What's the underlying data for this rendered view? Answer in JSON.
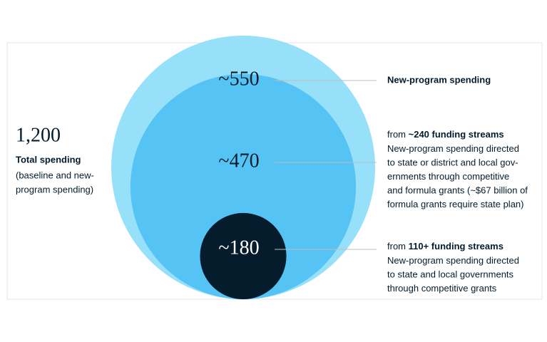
{
  "chart_data": {
    "type": "nested-circle",
    "total": {
      "value": 1200,
      "label": "1,200"
    },
    "total_title": "Total spending",
    "total_note": [
      "(baseline and new-",
      "program spending)"
    ],
    "values": [
      550,
      470,
      180
    ],
    "value_labels": [
      "~550",
      "~470",
      "~180"
    ],
    "colors": [
      "#97e0f9",
      "#55c3f4",
      "#051c2c"
    ],
    "label_colors": [
      "#051c2c",
      "#051c2c",
      "#ffffff"
    ],
    "descriptions": [
      {
        "title": "New-program spending"
      },
      {
        "from": "from",
        "streams": "~240 funding streams",
        "lines": [
          "New-program spending directed",
          "to state or district and local gov-",
          "ernments through competitive",
          "and formula grants (~$67 billion of",
          "formula grants require state plan)"
        ]
      },
      {
        "from": "from",
        "streams": "110+ funding streams",
        "lines": [
          "New-program spending directed",
          "to state and local governments",
          "through competitive grants"
        ]
      }
    ]
  }
}
